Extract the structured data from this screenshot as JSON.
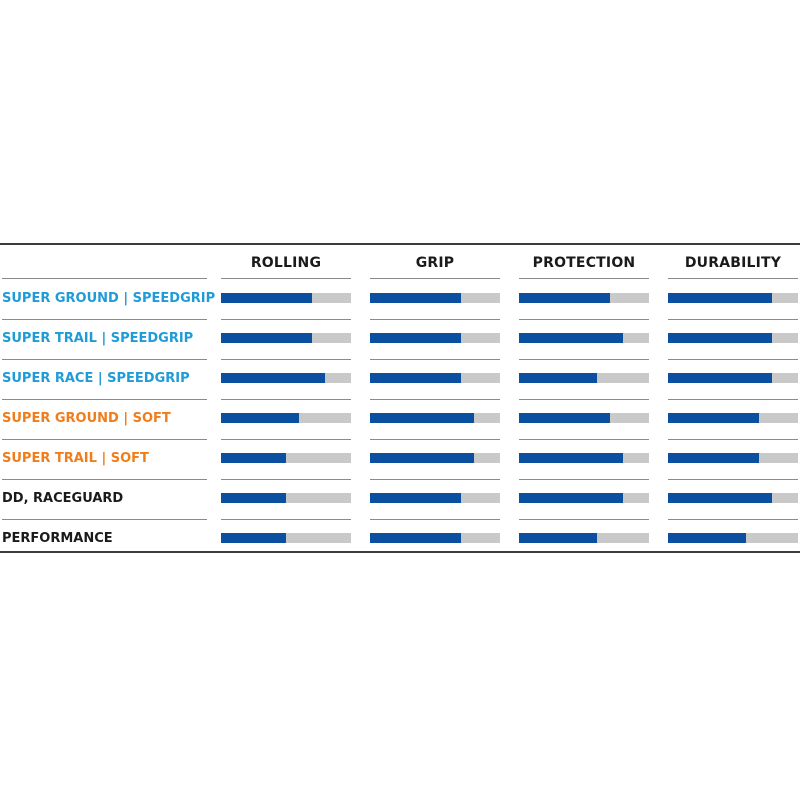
{
  "colors": {
    "label_blue": "#1f9bd7",
    "label_orange": "#f07d1a",
    "label_black": "#1a1a1a",
    "bar_fill": "#0b4fa0",
    "bar_track": "#c9c9c9"
  },
  "chart_data": {
    "type": "bar",
    "orientation": "horizontal",
    "value_range": [
      0,
      1
    ],
    "columns": [
      "ROLLING",
      "GRIP",
      "PROTECTION",
      "DURABILITY"
    ],
    "rows": [
      {
        "label": "SUPER GROUND | SPEEDGRIP",
        "color": "blue",
        "values": [
          0.7,
          0.7,
          0.7,
          0.8
        ]
      },
      {
        "label": "SUPER TRAIL | SPEEDGRIP",
        "color": "blue",
        "values": [
          0.7,
          0.7,
          0.8,
          0.8
        ]
      },
      {
        "label": "SUPER RACE | SPEEDGRIP",
        "color": "blue",
        "values": [
          0.8,
          0.7,
          0.6,
          0.8
        ]
      },
      {
        "label": "SUPER GROUND | SOFT",
        "color": "orange",
        "values": [
          0.6,
          0.8,
          0.7,
          0.7
        ]
      },
      {
        "label": "SUPER TRAIL | SOFT",
        "color": "orange",
        "values": [
          0.5,
          0.8,
          0.8,
          0.7
        ]
      },
      {
        "label": "DD, RACEGUARD",
        "color": "black",
        "values": [
          0.5,
          0.7,
          0.8,
          0.8
        ]
      },
      {
        "label": "PERFORMANCE",
        "color": "black",
        "values": [
          0.5,
          0.7,
          0.6,
          0.6
        ]
      }
    ]
  }
}
